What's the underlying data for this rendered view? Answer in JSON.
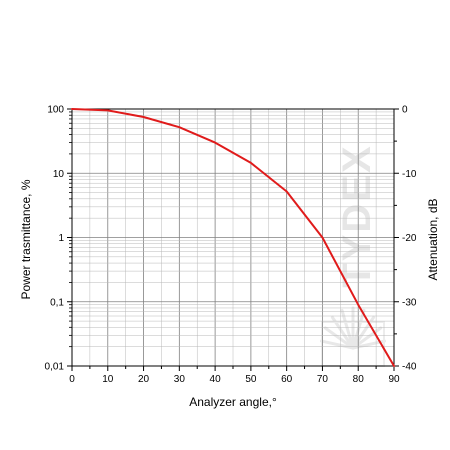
{
  "chart_data": {
    "type": "line",
    "title": "",
    "xlabel": "Analyzer angle,°",
    "ylabel": "Power trasmittance, %",
    "y2label": "Attenuation, dB",
    "xlim": [
      0,
      90
    ],
    "ylim": [
      0.01,
      100
    ],
    "y2lim": [
      -40,
      0
    ],
    "yscale": "log",
    "grid": true,
    "x_ticks": [
      "0",
      "10",
      "20",
      "30",
      "40",
      "50",
      "60",
      "70",
      "80",
      "90"
    ],
    "y_ticks": [
      "0,01",
      "0,1",
      "1",
      "10",
      "100"
    ],
    "y2_ticks": [
      "-40",
      "-30",
      "-20",
      "-10",
      "0"
    ],
    "series": [
      {
        "color": "#e01b1b",
        "x": [
          0,
          10,
          20,
          30,
          40,
          50,
          60,
          70,
          80,
          90
        ],
        "y": [
          100,
          95,
          75,
          52,
          30,
          14.5,
          5.2,
          1.0,
          0.09,
          0.01
        ]
      }
    ],
    "watermark": "TYDEX"
  }
}
